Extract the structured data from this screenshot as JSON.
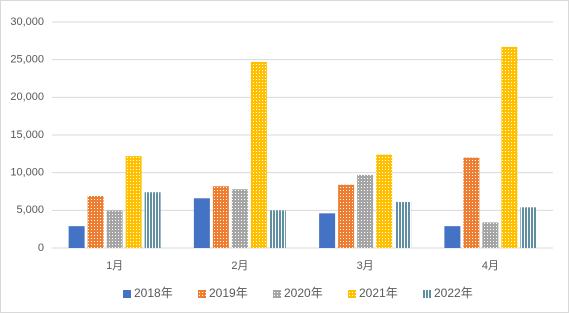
{
  "chart_data": {
    "type": "bar",
    "categories": [
      "1月",
      "2月",
      "3月",
      "4月"
    ],
    "series": [
      {
        "name": "2018年",
        "color": "#4472c4",
        "pattern": "solid",
        "values": [
          2900,
          6600,
          4600,
          2900
        ]
      },
      {
        "name": "2019年",
        "color": "#ed7d31",
        "pattern": "dots",
        "values": [
          6900,
          8200,
          8400,
          12000
        ]
      },
      {
        "name": "2020年",
        "color": "#a5a5a5",
        "pattern": "dots",
        "values": [
          5000,
          7800,
          9700,
          3400
        ]
      },
      {
        "name": "2021年",
        "color": "#ffc000",
        "pattern": "dots",
        "values": [
          12200,
          24700,
          12400,
          26700
        ]
      },
      {
        "name": "2022年",
        "color": "#5f8fa0",
        "pattern": "stripes",
        "values": [
          7400,
          5000,
          6100,
          5400
        ]
      }
    ],
    "ylim": [
      0,
      30000
    ],
    "yticks": [
      0,
      {
        "value": 5000,
        "label": "5,000"
      },
      {
        "value": 10000,
        "label": "10,000"
      },
      {
        "value": 15000,
        "label": "15,000"
      },
      {
        "value": 20000,
        "label": "20,000"
      },
      {
        "value": 25000,
        "label": "25,000"
      },
      {
        "value": 30000,
        "label": "30,000"
      }
    ],
    "grid": true,
    "legend": "bottom"
  }
}
